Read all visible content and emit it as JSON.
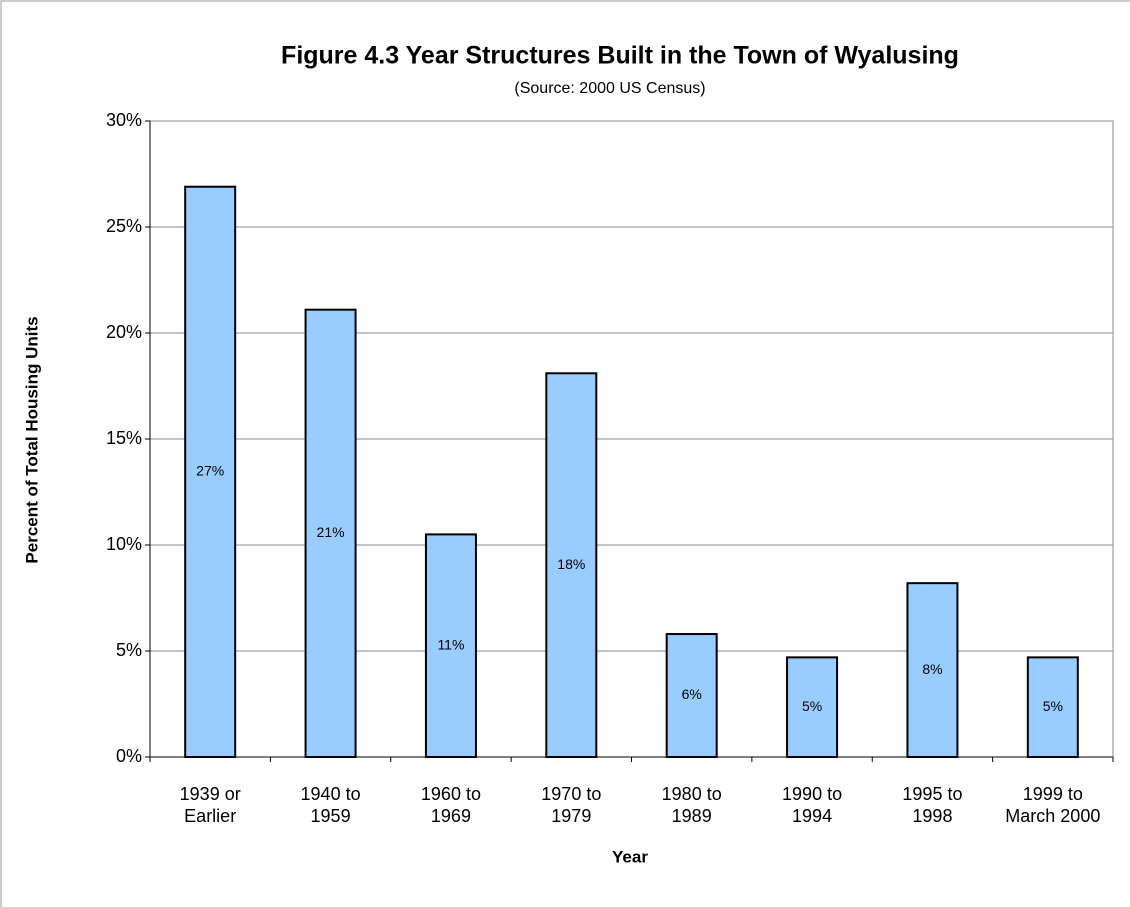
{
  "chart_data": {
    "type": "bar",
    "title": "Figure 4.3 Year Structures Built in the Town of Wyalusing",
    "subtitle": "(Source: 2000 US Census)",
    "x_label": "Year",
    "y_label": "Percent of Total Housing Units",
    "categories": [
      "1939 or\nEarlier",
      "1940 to\n1959",
      "1960 to\n1969",
      "1970 to\n1979",
      "1980 to\n1989",
      "1990 to\n1994",
      "1995 to\n1998",
      "1999 to\nMarch 2000"
    ],
    "values": [
      26.9,
      21.1,
      10.5,
      18.1,
      5.8,
      4.7,
      8.2,
      4.7
    ],
    "value_labels": [
      "27%",
      "21%",
      "11%",
      "18%",
      "6%",
      "5%",
      "8%",
      "5%"
    ],
    "color": "#99ccff",
    "ylim": [
      0,
      30
    ],
    "yticks": [
      {
        "value": 0,
        "label": "0%"
      },
      {
        "value": 5,
        "label": "5%"
      },
      {
        "value": 10,
        "label": "10%"
      },
      {
        "value": 15,
        "label": "15%"
      },
      {
        "value": 20,
        "label": "20%"
      },
      {
        "value": 25,
        "label": "25%"
      },
      {
        "value": 30,
        "label": "30%"
      }
    ],
    "grid": true
  }
}
